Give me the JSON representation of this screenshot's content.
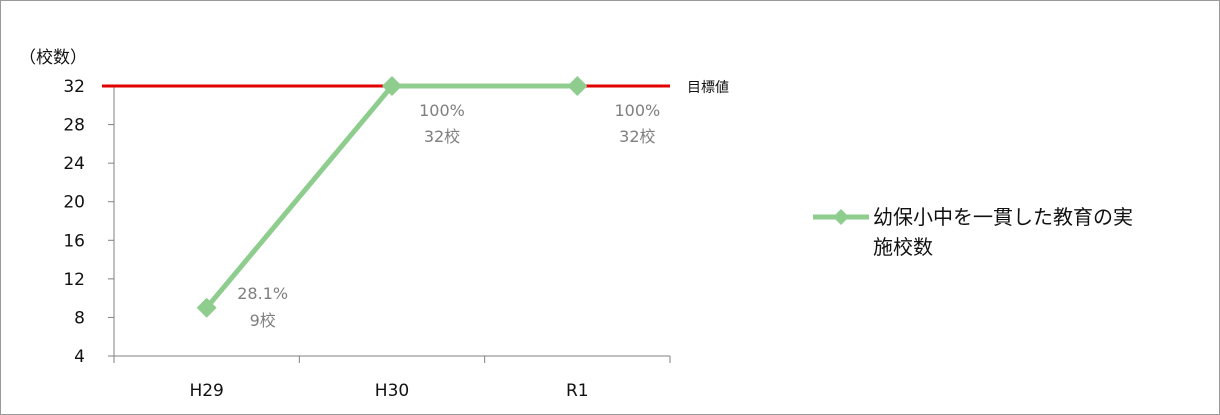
{
  "chart_data": {
    "type": "line",
    "categories": [
      "H29",
      "H30",
      "R1"
    ],
    "series": [
      {
        "name": "幼保小中を一貫した教育の実施校数",
        "values": [
          9,
          32,
          32
        ],
        "color": "#8fcd8f",
        "labels": [
          [
            "28.1%",
            "9校"
          ],
          [
            "100%",
            "32校"
          ],
          [
            "100%",
            "32校"
          ]
        ]
      }
    ],
    "target": {
      "value": 32,
      "label": "目標値",
      "color": "#e00000"
    },
    "ylabel": "（校数）",
    "ylim": [
      4,
      32
    ],
    "yticks": [
      4,
      8,
      12,
      16,
      20,
      24,
      28,
      32
    ],
    "grid": false,
    "legend_position": "right",
    "legend_lines": [
      "幼保小中を一貫した教育の実",
      "施校数"
    ]
  }
}
